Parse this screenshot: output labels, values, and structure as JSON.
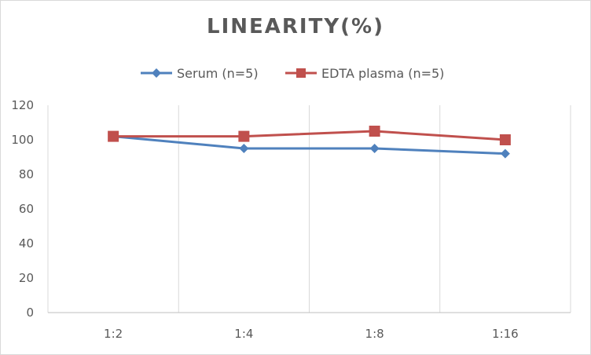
{
  "chart_data": {
    "type": "line",
    "title": "LINEARITY(%)",
    "xlabel": "",
    "ylabel": "",
    "categories": [
      "1:2",
      "1:4",
      "1:8",
      "1:16"
    ],
    "ylim": [
      0,
      120
    ],
    "yticks": [
      0,
      20,
      40,
      60,
      80,
      100,
      120
    ],
    "grid": "vertical",
    "legend_position": "top",
    "series": [
      {
        "name": "Serum (n=5)",
        "values": [
          102,
          95,
          95,
          92
        ],
        "color": "#4f81bd",
        "marker": "diamond"
      },
      {
        "name": "EDTA plasma (n=5)",
        "values": [
          102,
          102,
          105,
          100
        ],
        "color": "#c0504d",
        "marker": "square"
      }
    ]
  }
}
